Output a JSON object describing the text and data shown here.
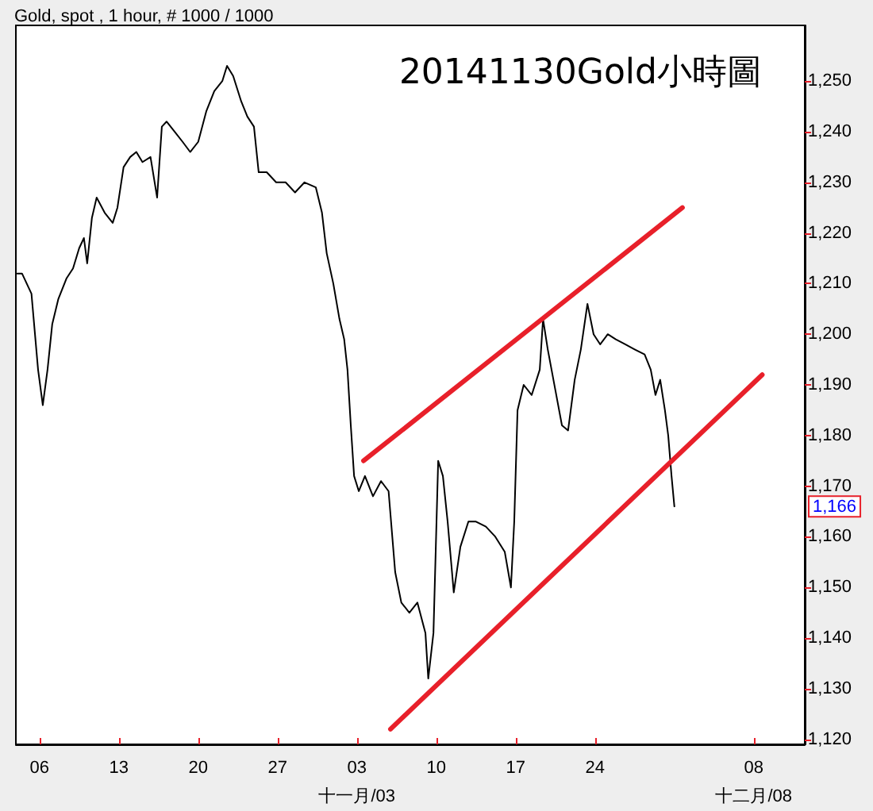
{
  "chart_data": {
    "type": "line",
    "title": "20141130Gold小時圖",
    "subtitle": "Gold, spot , 1 hour, # 1000 / 1000",
    "annotations": [
      {
        "text": "1,166",
        "y": 1166
      }
    ],
    "series": [
      {
        "color": "#000000",
        "x": [
          "2014-10-04T01:00",
          "2014-10-04T11:00",
          "2014-10-05T07:00",
          "2014-10-05T21:00",
          "2014-10-06T07:00",
          "2014-10-06T17:00",
          "2014-10-07T03:00",
          "2014-10-07T16:00",
          "2014-10-08T09:00",
          "2014-10-08T23:00",
          "2014-10-09T12:00",
          "2014-10-09T22:00",
          "2014-10-10T05:00",
          "2014-10-10T15:00",
          "2014-10-11T01:00",
          "2014-10-11T18:00",
          "2014-10-12T11:00",
          "2014-10-12T21:00",
          "2014-10-13T10:00",
          "2014-10-14T00:00",
          "2014-10-14T13:00",
          "2014-10-15T02:00",
          "2014-10-15T19:00",
          "2014-10-16T09:00",
          "2014-10-16T19:00",
          "2014-10-17T05:00",
          "2014-10-17T22:00",
          "2014-10-18T15:00",
          "2014-10-19T07:00",
          "2014-10-20T00:00",
          "2014-10-20T17:00",
          "2014-10-21T10:00",
          "2014-10-22T03:00",
          "2014-10-22T13:00",
          "2014-10-23T02:00",
          "2014-10-23T19:00",
          "2014-10-24T08:00",
          "2014-10-24T22:00",
          "2014-10-25T08:00",
          "2014-10-26T01:00",
          "2014-10-26T21:00",
          "2014-10-27T17:00",
          "2014-10-28T13:00",
          "2014-10-29T09:00",
          "2014-10-30T09:00",
          "2014-10-30T22:00",
          "2014-10-31T08:00",
          "2014-10-31T22:00",
          "2014-11-01T11:00",
          "2014-11-01T21:00",
          "2014-11-02T04:00",
          "2014-11-02T11:00",
          "2014-11-02T18:00",
          "2014-11-03T04:00",
          "2014-11-03T17:00",
          "2014-11-04T10:00",
          "2014-11-05T03:00",
          "2014-11-05T19:00",
          "2014-11-06T09:00",
          "2014-11-06T22:00",
          "2014-11-07T15:00",
          "2014-11-08T08:00",
          "2014-11-09T01:00",
          "2014-11-09T07:00",
          "2014-11-09T18:00",
          "2014-11-10T04:00",
          "2014-11-10T14:00",
          "2014-11-11T00:00",
          "2014-11-11T13:00",
          "2014-11-12T03:00",
          "2014-11-12T20:00",
          "2014-11-13T12:00",
          "2014-11-14T09:00",
          "2014-11-15T05:00",
          "2014-11-16T01:00",
          "2014-11-16T14:00",
          "2014-11-16T21:00",
          "2014-11-17T04:00",
          "2014-11-17T17:00",
          "2014-11-18T10:00",
          "2014-11-19T03:00",
          "2014-11-19T10:00",
          "2014-11-19T20:00",
          "2014-11-20T12:00",
          "2014-11-21T02:00",
          "2014-11-21T15:00",
          "2014-11-22T05:00",
          "2014-11-22T18:00",
          "2014-11-23T08:00",
          "2014-11-23T21:00",
          "2014-11-24T11:00",
          "2014-11-25T03:00",
          "2014-11-25T20:00",
          "2014-11-26T16:00",
          "2014-11-27T12:00",
          "2014-11-28T09:00",
          "2014-11-28T22:00",
          "2014-11-29T08:00",
          "2014-11-29T18:00",
          "2014-11-30T04:00",
          "2014-11-30T11:00",
          "2014-11-30T18:00",
          "2014-12-01T00:00"
        ],
        "values": [
          1212,
          1212,
          1208,
          1193,
          1186,
          1193,
          1202,
          1207,
          1211,
          1213,
          1217,
          1219,
          1214,
          1223,
          1227,
          1224,
          1222,
          1225,
          1233,
          1235,
          1236,
          1234,
          1235,
          1227,
          1241,
          1242,
          1240,
          1238,
          1236,
          1238,
          1244,
          1248,
          1250,
          1253,
          1251,
          1246,
          1243,
          1241,
          1232,
          1232,
          1230,
          1230,
          1228,
          1230,
          1229,
          1224,
          1216,
          1210,
          1203,
          1199,
          1193,
          1182,
          1172,
          1169,
          1172,
          1168,
          1171,
          1169,
          1153,
          1147,
          1145,
          1147,
          1141,
          1132,
          1141,
          1175,
          1172,
          1163,
          1149,
          1158,
          1163,
          1163,
          1162,
          1160,
          1157,
          1150,
          1163,
          1185,
          1190,
          1188,
          1193,
          1203,
          1197,
          1189,
          1182,
          1181,
          1191,
          1197,
          1206,
          1200,
          1198,
          1200,
          1199,
          1198,
          1197,
          1196,
          1193,
          1188,
          1191,
          1185,
          1180,
          1172,
          1166
        ]
      },
      {
        "type": "line",
        "color": "#e8202a",
        "x": [
          "2014-11-03T14:00",
          "2014-12-01T17:00"
        ],
        "values": [
          1175,
          1225
        ]
      },
      {
        "type": "line",
        "color": "#e8202a",
        "x": [
          "2014-11-05T23:00",
          "2014-12-08T18:00"
        ],
        "values": [
          1122,
          1192
        ]
      }
    ],
    "xlim": [
      "2014-10-03T22:00",
      "2014-12-12T12:00"
    ],
    "xticks": [
      {
        "value": "2014-10-06",
        "label": "06"
      },
      {
        "value": "2014-10-13",
        "label": "13"
      },
      {
        "value": "2014-10-20",
        "label": "20"
      },
      {
        "value": "2014-10-27",
        "label": "27"
      },
      {
        "value": "2014-11-03",
        "label": "03\n十一月/03"
      },
      {
        "value": "2014-11-10",
        "label": "10"
      },
      {
        "value": "2014-11-17",
        "label": "17"
      },
      {
        "value": "2014-11-24",
        "label": "24"
      },
      {
        "value": "2014-12-08",
        "label": "08\n十二月/08"
      }
    ],
    "ylim": [
      1119,
      1261
    ],
    "yticks": [
      {
        "value": 1120,
        "label": "1,120"
      },
      {
        "value": 1130,
        "label": "1,130"
      },
      {
        "value": 1140,
        "label": "1,140"
      },
      {
        "value": 1150,
        "label": "1,150"
      },
      {
        "value": 1160,
        "label": "1,160"
      },
      {
        "value": 1170,
        "label": "1,170"
      },
      {
        "value": 1180,
        "label": "1,180"
      },
      {
        "value": 1190,
        "label": "1,190"
      },
      {
        "value": 1200,
        "label": "1,200"
      },
      {
        "value": 1210,
        "label": "1,210"
      },
      {
        "value": 1220,
        "label": "1,220"
      },
      {
        "value": 1230,
        "label": "1,230"
      },
      {
        "value": 1240,
        "label": "1,240"
      },
      {
        "value": 1250,
        "label": "1,250"
      }
    ],
    "grid": false,
    "marker": "none",
    "line_style": "solid"
  }
}
